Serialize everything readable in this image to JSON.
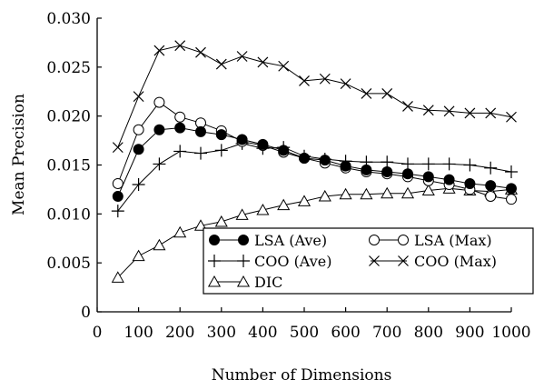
{
  "chart_data": {
    "type": "line",
    "xlabel": "Number of Dimensions",
    "ylabel": "Mean Precision",
    "xlim": [
      0,
      1000
    ],
    "ylim": [
      0,
      0.03
    ],
    "x_ticks": [
      0,
      100,
      200,
      300,
      400,
      500,
      600,
      700,
      800,
      900,
      1000
    ],
    "y_ticks": [
      0,
      0.005,
      0.01,
      0.015,
      0.02,
      0.025,
      0.03
    ],
    "y_tick_labels": [
      "0",
      "0.005",
      "0.010",
      "0.015",
      "0.020",
      "0.025",
      "0.030"
    ],
    "grid": false,
    "legend_position": "bottom-right",
    "x": [
      50,
      100,
      150,
      200,
      250,
      300,
      350,
      400,
      450,
      500,
      550,
      600,
      650,
      700,
      750,
      800,
      850,
      900,
      950,
      1000
    ],
    "series": [
      {
        "name": "LSA (Ave)",
        "marker": "filled-circle",
        "values": [
          0.0118,
          0.0166,
          0.0186,
          0.0188,
          0.0184,
          0.0181,
          0.0176,
          0.0171,
          0.0165,
          0.0157,
          0.0155,
          0.0149,
          0.0145,
          0.0143,
          0.0141,
          0.0138,
          0.0135,
          0.0131,
          0.0129,
          0.0126
        ]
      },
      {
        "name": "LSA (Max)",
        "marker": "open-circle",
        "values": [
          0.0131,
          0.0186,
          0.0214,
          0.0199,
          0.0193,
          0.0185,
          0.0174,
          0.017,
          0.0163,
          0.0157,
          0.0152,
          0.0147,
          0.0143,
          0.0141,
          0.0138,
          0.0134,
          0.013,
          0.0125,
          0.0118,
          0.0115
        ]
      },
      {
        "name": "COO (Ave)",
        "marker": "plus",
        "values": [
          0.0103,
          0.013,
          0.0151,
          0.0164,
          0.0162,
          0.0165,
          0.0172,
          0.0167,
          0.0168,
          0.0159,
          0.0156,
          0.0154,
          0.0153,
          0.0153,
          0.0151,
          0.0151,
          0.0151,
          0.015,
          0.0147,
          0.0143
        ]
      },
      {
        "name": "COO (Max)",
        "marker": "cross",
        "values": [
          0.0168,
          0.022,
          0.0267,
          0.0272,
          0.0265,
          0.0253,
          0.0261,
          0.0255,
          0.0251,
          0.0236,
          0.0238,
          0.0233,
          0.0223,
          0.0223,
          0.021,
          0.0206,
          0.0205,
          0.0203,
          0.0203,
          0.0199
        ]
      },
      {
        "name": "DIC",
        "marker": "triangle",
        "values": [
          0.0035,
          0.0057,
          0.0068,
          0.0081,
          0.0088,
          0.0092,
          0.0099,
          0.0104,
          0.0109,
          0.0113,
          0.0118,
          0.012,
          0.012,
          0.0121,
          0.0121,
          0.0124,
          0.0126,
          0.0124,
          0.0123,
          0.0125
        ]
      }
    ]
  }
}
